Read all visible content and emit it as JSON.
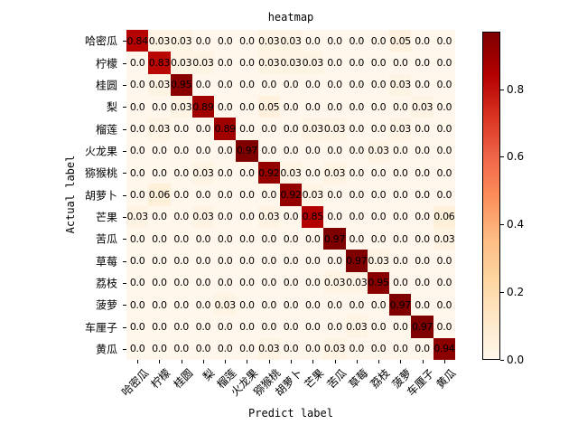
{
  "chart_data": {
    "type": "heatmap",
    "title": "heatmap",
    "xlabel": "Predict label",
    "ylabel": "Actual label",
    "colormap": "OrRd",
    "colorbar": {
      "range": [
        0.0,
        0.97
      ],
      "ticks": [
        "0.0",
        "0.2",
        "0.4",
        "0.6",
        "0.8"
      ]
    },
    "x_categories": [
      "哈密瓜",
      "柠檬",
      "桂圆",
      "梨",
      "榴莲",
      "火龙果",
      "猕猴桃",
      "胡萝卜",
      "芒果",
      "苦瓜",
      "草莓",
      "荔枝",
      "菠萝",
      "车厘子",
      "黄瓜"
    ],
    "y_categories": [
      "哈密瓜",
      "柠檬",
      "桂圆",
      "梨",
      "榴莲",
      "火龙果",
      "猕猴桃",
      "胡萝卜",
      "芒果",
      "苦瓜",
      "草莓",
      "荔枝",
      "菠萝",
      "车厘子",
      "黄瓜"
    ],
    "values": [
      [
        0.84,
        0.03,
        0.03,
        0.0,
        0.0,
        0.0,
        0.03,
        0.03,
        0.0,
        0.0,
        0.0,
        0.0,
        0.05,
        0.0,
        0.0
      ],
      [
        0.0,
        0.83,
        0.03,
        0.03,
        0.0,
        0.0,
        0.03,
        0.03,
        0.03,
        0.0,
        0.0,
        0.0,
        0.0,
        0.0,
        0.0
      ],
      [
        0.0,
        0.03,
        0.95,
        0.0,
        0.0,
        0.0,
        0.0,
        0.0,
        0.0,
        0.0,
        0.0,
        0.0,
        0.03,
        0.0,
        0.0
      ],
      [
        0.0,
        0.0,
        0.03,
        0.89,
        0.0,
        0.0,
        0.05,
        0.0,
        0.0,
        0.0,
        0.0,
        0.0,
        0.0,
        0.03,
        0.0
      ],
      [
        0.0,
        0.03,
        0.0,
        0.0,
        0.89,
        0.0,
        0.0,
        0.0,
        0.03,
        0.03,
        0.0,
        0.0,
        0.03,
        0.0,
        0.0
      ],
      [
        0.0,
        0.0,
        0.0,
        0.0,
        0.0,
        0.97,
        0.0,
        0.0,
        0.0,
        0.0,
        0.0,
        0.03,
        0.0,
        0.0,
        0.0
      ],
      [
        0.0,
        0.0,
        0.0,
        0.03,
        0.0,
        0.0,
        0.92,
        0.03,
        0.0,
        0.03,
        0.0,
        0.0,
        0.0,
        0.0,
        0.0
      ],
      [
        0.0,
        0.06,
        0.0,
        0.0,
        0.0,
        0.0,
        0.0,
        0.92,
        0.03,
        0.0,
        0.0,
        0.0,
        0.0,
        0.0,
        0.0
      ],
      [
        0.03,
        0.0,
        0.0,
        0.03,
        0.0,
        0.0,
        0.03,
        0.0,
        0.85,
        0.0,
        0.0,
        0.0,
        0.0,
        0.0,
        0.06
      ],
      [
        0.0,
        0.0,
        0.0,
        0.0,
        0.0,
        0.0,
        0.0,
        0.0,
        0.0,
        0.97,
        0.0,
        0.0,
        0.0,
        0.0,
        0.03
      ],
      [
        0.0,
        0.0,
        0.0,
        0.0,
        0.0,
        0.0,
        0.0,
        0.0,
        0.0,
        0.0,
        0.97,
        0.03,
        0.0,
        0.0,
        0.0
      ],
      [
        0.0,
        0.0,
        0.0,
        0.0,
        0.0,
        0.0,
        0.0,
        0.0,
        0.0,
        0.03,
        0.03,
        0.95,
        0.0,
        0.0,
        0.0
      ],
      [
        0.0,
        0.0,
        0.0,
        0.0,
        0.03,
        0.0,
        0.0,
        0.0,
        0.0,
        0.0,
        0.0,
        0.0,
        0.97,
        0.0,
        0.0
      ],
      [
        0.0,
        0.0,
        0.0,
        0.0,
        0.0,
        0.0,
        0.0,
        0.0,
        0.0,
        0.0,
        0.03,
        0.0,
        0.0,
        0.97,
        0.0
      ],
      [
        0.0,
        0.0,
        0.0,
        0.0,
        0.0,
        0.0,
        0.03,
        0.0,
        0.0,
        0.03,
        0.0,
        0.0,
        0.0,
        0.0,
        0.94
      ]
    ]
  }
}
